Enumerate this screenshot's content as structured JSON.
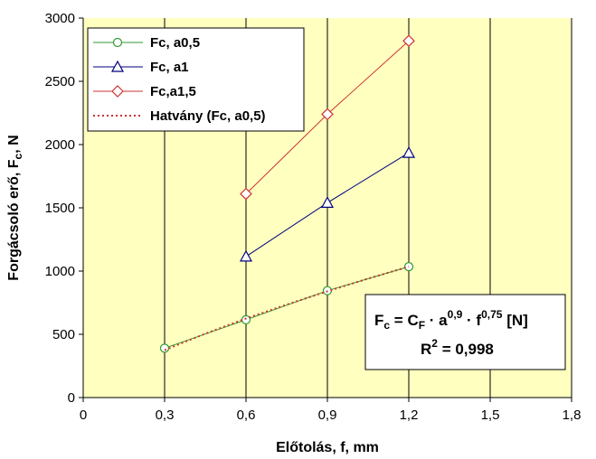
{
  "chart_data": {
    "type": "line",
    "xlabel": "Előtolás, f, mm",
    "ylabel": "Forgácsoló erő, F",
    "ylabel_sub": "c",
    "ylabel_suffix": ", N",
    "xlim": [
      0,
      1.8
    ],
    "ylim": [
      0,
      3000
    ],
    "xticks": [
      0,
      0.3,
      0.6,
      0.9,
      1.2,
      1.5,
      1.8
    ],
    "xtick_labels": [
      "0",
      "0,3",
      "0,6",
      "0,9",
      "1,2",
      "1,5",
      "1,8"
    ],
    "yticks": [
      0,
      500,
      1000,
      1500,
      2000,
      2500,
      3000
    ],
    "ytick_labels": [
      "0",
      "500",
      "1000",
      "1500",
      "2000",
      "2500",
      "3000"
    ],
    "grid": "vertical",
    "legend_position": "top-left",
    "plot_background": "#ffffc0",
    "series": [
      {
        "name": "Fc, a0,5",
        "color": "#339933",
        "marker": "circle",
        "x": [
          0.3,
          0.6,
          0.9,
          1.2
        ],
        "y": [
          390,
          615,
          845,
          1035
        ]
      },
      {
        "name": "Fc, a1",
        "color": "#00007f",
        "marker": "triangle",
        "x": [
          0.6,
          0.9,
          1.2
        ],
        "y": [
          1115,
          1540,
          1935
        ]
      },
      {
        "name": "Fc,a1,5",
        "color": "#cc3333",
        "marker": "diamond",
        "x": [
          0.6,
          0.9,
          1.2
        ],
        "y": [
          1610,
          2240,
          2820
        ]
      },
      {
        "name": "Hatvány (Fc, a0,5)",
        "color": "#cc3333",
        "marker": "none",
        "dashed": true,
        "x": [
          0.3,
          0.45,
          0.6,
          0.75,
          0.9,
          1.05,
          1.2
        ],
        "y": [
          375,
          505,
          625,
          735,
          840,
          940,
          1035
        ]
      }
    ],
    "annotation": {
      "eq_lhs": "F",
      "eq_lhs_sub": "c",
      "eq_mid": " = C",
      "eq_mid_sub": "F",
      "eq_a": " · a",
      "eq_a_sup": "0,9",
      "eq_f": " · f",
      "eq_f_sup": "0,75",
      "eq_unit": " [N]",
      "r2_prefix": "R",
      "r2_sup": "2",
      "r2_value": " = 0,998"
    }
  }
}
